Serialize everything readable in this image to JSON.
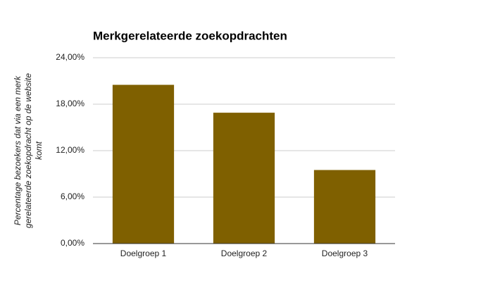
{
  "chart_data": {
    "type": "bar",
    "title": "Merkgerelateerde zoekopdrachten",
    "ylabel": [
      "Percentage bezoekers dat via een merk",
      "gerelateerde zoekopdracht op de website",
      "komt"
    ],
    "categories": [
      "Doelgroep 1",
      "Doelgroep 2",
      "Doelgroep 3"
    ],
    "values": [
      20.5,
      16.9,
      9.5
    ],
    "color": "#7f6000",
    "ylim": [
      0,
      24
    ],
    "yticks": [
      {
        "value": 0,
        "label": "0,00%"
      },
      {
        "value": 6,
        "label": "6,00%"
      },
      {
        "value": 12,
        "label": "12,00%"
      },
      {
        "value": 18,
        "label": "18,00%"
      },
      {
        "value": 24,
        "label": "24,00%"
      }
    ],
    "grid": true
  }
}
